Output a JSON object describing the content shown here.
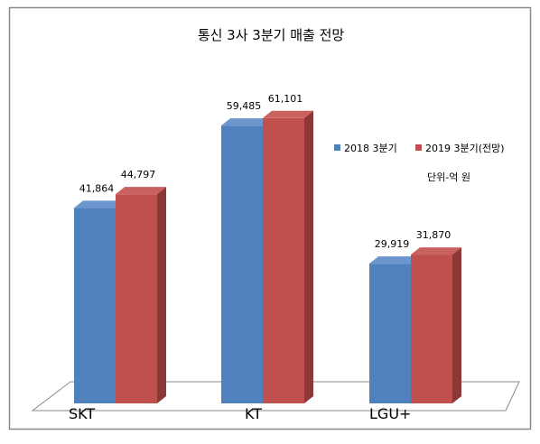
{
  "chart_data": {
    "type": "bar",
    "title": "통신 3사 3분기 매출 전망",
    "unit_note": "단위-억 원",
    "categories": [
      "SKT",
      "KT",
      "LGU+"
    ],
    "series": [
      {
        "name": "2018 3분기",
        "values": [
          41864,
          59485,
          29919
        ],
        "labels": [
          "41,864",
          "59,485",
          "29,919"
        ]
      },
      {
        "name": "2019 3분기(전망)",
        "values": [
          44797,
          61101,
          31870
        ],
        "labels": [
          "44,797",
          "61,101",
          "31,870"
        ]
      }
    ],
    "ylim": [
      0,
      80000
    ],
    "grid": false,
    "legend_position": "right",
    "style": "3d-column",
    "colors": {
      "series_front": [
        "#4f81bd",
        "#c0504d"
      ],
      "series_top": [
        "#6b95cc",
        "#c9625f"
      ],
      "series_side": [
        "#385d8a",
        "#8c3836"
      ],
      "frame": "#888888",
      "floor": "#ffffff",
      "text": "#000000"
    }
  }
}
